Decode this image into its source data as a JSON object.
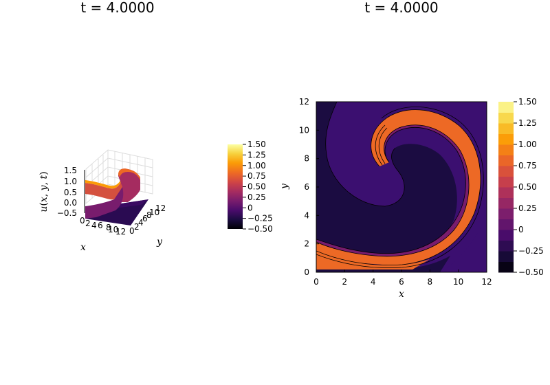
{
  "colors": {
    "inferno": [
      "#000004",
      "#1b0c41",
      "#4a0c6b",
      "#781c6d",
      "#a52c60",
      "#cf4446",
      "#ed6925",
      "#fb9b06",
      "#f7d13d",
      "#fcffa4"
    ]
  },
  "chart_data": [
    {
      "type": "surface",
      "title": "t = 4.0000",
      "xlabel": "x",
      "ylabel": "y",
      "zlabel": "u(x,y,t)",
      "xticks": [
        "0",
        "2",
        "4",
        "6",
        "8",
        "10",
        "12"
      ],
      "yticks": [
        "0",
        "2",
        "4",
        "6",
        "8",
        "10",
        "12"
      ],
      "zticks": [
        "1.5",
        "1.0",
        "0.5",
        "0.0",
        "−0.5"
      ],
      "xlim": [
        0,
        12
      ],
      "ylim": [
        0,
        12
      ],
      "zlim": [
        -0.5,
        1.5
      ],
      "grid": true,
      "colorbar": {
        "range": [
          -0.5,
          1.5
        ],
        "ticks": [
          "1.50",
          "1.25",
          "1.00",
          "0.75",
          "0.50",
          "0.25",
          "0",
          "−0.25",
          "−0.50"
        ]
      }
    },
    {
      "type": "contour",
      "title": "t = 4.0000",
      "xlabel": "x",
      "ylabel": "y",
      "xticks": [
        "0",
        "2",
        "4",
        "6",
        "8",
        "10",
        "12"
      ],
      "yticks": [
        "0",
        "2",
        "4",
        "6",
        "8",
        "10",
        "12"
      ],
      "xlim": [
        0,
        12
      ],
      "ylim": [
        0,
        12
      ],
      "regions": [
        {
          "region": "background",
          "value": 0.0
        },
        {
          "region": "upper-left / inner area",
          "value": -0.2
        },
        {
          "region": "spiral arm",
          "value": 1.0
        }
      ],
      "colorbar": {
        "range": [
          -0.5,
          1.5
        ],
        "levels": 16,
        "ticks": [
          "1.50",
          "1.25",
          "1.00",
          "0.75",
          "0.50",
          "0.25",
          "0",
          "−0.25",
          "−0.50"
        ]
      }
    }
  ]
}
